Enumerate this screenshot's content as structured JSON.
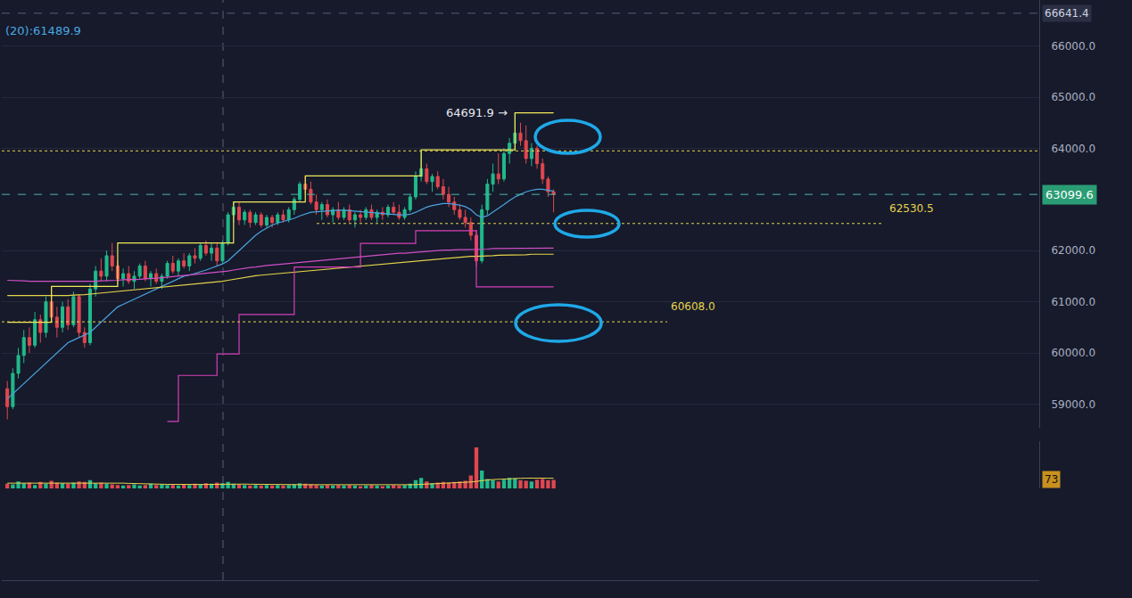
{
  "chart_data": {
    "type": "candlestick",
    "indicator_text": "(20):61489.9",
    "x": [
      0,
      1,
      2,
      3,
      4,
      5,
      6,
      7,
      8,
      9,
      10,
      11,
      12,
      13,
      14,
      15,
      16,
      17,
      18,
      19,
      20,
      21,
      22,
      23,
      24,
      25,
      26,
      27,
      28,
      29,
      30,
      31,
      32,
      33,
      34,
      35,
      36,
      37,
      38,
      39,
      40,
      41,
      42,
      43,
      44,
      45,
      46,
      47,
      48,
      49,
      50,
      51,
      52,
      53,
      54,
      55,
      56,
      57,
      58,
      59,
      60,
      61,
      62,
      63,
      64,
      65,
      66,
      67,
      68,
      69,
      70,
      71,
      72,
      73,
      74,
      75,
      76,
      77,
      78,
      79,
      80,
      81,
      82,
      83,
      84,
      85,
      86,
      87,
      88,
      89,
      90,
      91,
      92,
      93,
      94,
      95,
      96,
      97,
      98,
      99
    ],
    "open": [
      59300,
      58950,
      59600,
      59950,
      60300,
      60150,
      60650,
      60400,
      61000,
      60700,
      60500,
      60900,
      60550,
      61100,
      60400,
      60200,
      61250,
      61600,
      61500,
      61900,
      61700,
      61450,
      61550,
      61400,
      61500,
      61700,
      61450,
      61550,
      61400,
      61500,
      61750,
      61600,
      61800,
      61700,
      61900,
      61850,
      62100,
      61950,
      62050,
      61800,
      62150,
      62700,
      62850,
      62600,
      62750,
      62550,
      62700,
      62500,
      62650,
      62550,
      62700,
      62600,
      62800,
      63000,
      63300,
      63200,
      62950,
      62800,
      62900,
      62700,
      62800,
      62650,
      62800,
      62600,
      62700,
      62650,
      62800,
      62650,
      62750,
      62700,
      62850,
      62750,
      62650,
      62800,
      63050,
      63450,
      63600,
      63350,
      63450,
      63250,
      63100,
      62950,
      62800,
      62650,
      62550,
      62300,
      61800,
      62800,
      63300,
      63500,
      63400,
      63900,
      64100,
      64300,
      64150,
      63800,
      64000,
      63700,
      63400,
      63150
    ],
    "high": [
      59450,
      59700,
      60100,
      60450,
      60500,
      60800,
      60750,
      61100,
      61300,
      60900,
      61000,
      61050,
      61200,
      61150,
      60500,
      61350,
      61700,
      61850,
      62000,
      62150,
      61800,
      61650,
      61700,
      61600,
      61750,
      61800,
      61600,
      61650,
      61550,
      61800,
      61900,
      61850,
      61950,
      61950,
      62050,
      62150,
      62200,
      62150,
      62150,
      62200,
      62750,
      62950,
      62950,
      62800,
      62800,
      62750,
      62750,
      62700,
      62700,
      62750,
      62800,
      62850,
      63050,
      63350,
      63450,
      63350,
      63100,
      62950,
      63000,
      62850,
      62950,
      62850,
      62900,
      62750,
      62800,
      62850,
      62900,
      62800,
      62850,
      62900,
      62950,
      62900,
      62850,
      63100,
      63550,
      63950,
      63700,
      63500,
      63550,
      63400,
      63250,
      63050,
      62900,
      62800,
      62650,
      62400,
      62900,
      63400,
      63700,
      63900,
      64000,
      64200,
      64691.9,
      64500,
      64450,
      64100,
      64050,
      63800,
      63450,
      63200
    ],
    "low": [
      58700,
      58900,
      59500,
      59800,
      60000,
      60100,
      60200,
      60300,
      60600,
      60300,
      60400,
      60450,
      60500,
      60300,
      60100,
      60150,
      61100,
      61400,
      61400,
      61600,
      61350,
      61300,
      61350,
      61250,
      61450,
      61400,
      61300,
      61350,
      61250,
      61450,
      61550,
      61500,
      61650,
      61600,
      61750,
      61800,
      61900,
      61800,
      61700,
      61750,
      62100,
      62550,
      62500,
      62500,
      62450,
      62500,
      62450,
      62450,
      62450,
      62500,
      62550,
      62550,
      62700,
      62950,
      63100,
      62900,
      62700,
      62600,
      62650,
      62550,
      62600,
      62600,
      62550,
      62450,
      62550,
      62600,
      62600,
      62550,
      62600,
      62650,
      62700,
      62600,
      62600,
      62750,
      63000,
      63350,
      63300,
      63150,
      63200,
      63000,
      62850,
      62700,
      62600,
      62450,
      62200,
      61700,
      61750,
      62700,
      63150,
      63300,
      63350,
      63700,
      63950,
      64050,
      63700,
      63650,
      63600,
      63300,
      63050,
      62750
    ],
    "close": [
      58950,
      59600,
      59950,
      60300,
      60150,
      60650,
      60400,
      61000,
      60700,
      60500,
      60900,
      60550,
      61100,
      60400,
      60200,
      61250,
      61600,
      61500,
      61900,
      61700,
      61450,
      61550,
      61400,
      61500,
      61700,
      61450,
      61550,
      61400,
      61500,
      61750,
      61600,
      61800,
      61700,
      61900,
      61850,
      62100,
      61950,
      62050,
      61800,
      62150,
      62700,
      62850,
      62600,
      62750,
      62550,
      62700,
      62500,
      62650,
      62550,
      62700,
      62600,
      62800,
      63000,
      63300,
      63200,
      62950,
      62800,
      62900,
      62700,
      62800,
      62650,
      62800,
      62600,
      62700,
      62650,
      62800,
      62650,
      62750,
      62700,
      62850,
      62750,
      62650,
      62800,
      63050,
      63450,
      63600,
      63350,
      63450,
      63250,
      63100,
      62950,
      62800,
      62650,
      62550,
      62300,
      61800,
      62800,
      63300,
      63500,
      63400,
      63900,
      64100,
      64300,
      64150,
      63800,
      64000,
      63700,
      63400,
      63150,
      63099.6
    ],
    "colors": [
      "#22b98a",
      "#e0474f"
    ],
    "series": [
      {
        "color": "#4aa3df",
        "line_style": "solid",
        "values": [
          59100,
          59200,
          59300,
          59400,
          59500,
          59600,
          59700,
          59800,
          59900,
          60000,
          60100,
          60200,
          60250,
          60300,
          60350,
          60400,
          60500,
          60600,
          60700,
          60800,
          60900,
          60950,
          61000,
          61050,
          61100,
          61150,
          61200,
          61250,
          61300,
          61350,
          61400,
          61450,
          61500,
          61520,
          61550,
          61580,
          61620,
          61660,
          61700,
          61740,
          61800,
          61900,
          62000,
          62100,
          62200,
          62300,
          62380,
          62440,
          62500,
          62540,
          62570,
          62600,
          62630,
          62680,
          62720,
          62750,
          62760,
          62770,
          62780,
          62790,
          62790,
          62790,
          62780,
          62770,
          62760,
          62750,
          62740,
          62730,
          62720,
          62710,
          62700,
          62700,
          62700,
          62710,
          62750,
          62800,
          62850,
          62880,
          62900,
          62920,
          62920,
          62910,
          62890,
          62860,
          62800,
          62700,
          62650,
          62680,
          62750,
          62820,
          62900,
          62980,
          63050,
          63100,
          63150,
          63180,
          63200,
          63200,
          63180,
          63160
        ]
      },
      {
        "color": "#e5d34a",
        "line_style": "solid",
        "values": [
          61120,
          61120,
          61110,
          61110,
          61110,
          61110,
          61110,
          61110,
          61110,
          61110,
          61120,
          61120,
          61130,
          61130,
          61140,
          61150,
          61160,
          61170,
          61180,
          61190,
          61200,
          61210,
          61220,
          61230,
          61240,
          61250,
          61260,
          61270,
          61280,
          61290,
          61300,
          61310,
          61320,
          61330,
          61340,
          61350,
          61360,
          61370,
          61380,
          61400,
          61420,
          61440,
          61460,
          61480,
          61500,
          61510,
          61520,
          61530,
          61540,
          61550,
          61560,
          61570,
          61580,
          61590,
          61600,
          61610,
          61620,
          61630,
          61640,
          61650,
          61660,
          61670,
          61680,
          61690,
          61700,
          61710,
          61720,
          61730,
          61740,
          61750,
          61760,
          61770,
          61780,
          61790,
          61800,
          61810,
          61820,
          61830,
          61840,
          61850,
          61860,
          61870,
          61880,
          61880,
          61890,
          61890,
          61890,
          61900,
          61900,
          61910,
          61910,
          61910,
          61920,
          61920,
          61920,
          61930,
          61930,
          61930,
          61930,
          61930
        ]
      },
      {
        "color": "#d14fc6",
        "line_style": "solid",
        "values": [
          61420,
          61420,
          61410,
          61410,
          61400,
          61400,
          61400,
          61400,
          61390,
          61390,
          61390,
          61390,
          61390,
          61400,
          61400,
          61400,
          61400,
          61410,
          61410,
          61420,
          61420,
          61430,
          61430,
          61440,
          61440,
          61450,
          61450,
          61460,
          61470,
          61480,
          61490,
          61500,
          61510,
          61520,
          61530,
          61540,
          61550,
          61560,
          61570,
          61580,
          61600,
          61620,
          61640,
          61650,
          61670,
          61680,
          61700,
          61710,
          61720,
          61730,
          61740,
          61750,
          61770,
          61780,
          61790,
          61800,
          61810,
          61820,
          61830,
          61840,
          61850,
          61860,
          61870,
          61880,
          61890,
          61900,
          61910,
          61910,
          61920,
          61930,
          61940,
          61950,
          61950,
          61960,
          61970,
          61980,
          61990,
          62000,
          62000,
          62010,
          62010,
          62020,
          62020,
          62020,
          62020,
          62020,
          62030,
          62030,
          62040,
          62040,
          62040,
          62050,
          62050,
          62050,
          62050,
          62050,
          62050,
          62050,
          62050,
          62050
        ]
      },
      {
        "color": "#f2ea5a",
        "line_style": "step",
        "values": [
          60600,
          60600,
          60600,
          60600,
          60600,
          60600,
          60600,
          60600,
          61300,
          61300,
          61300,
          61300,
          61300,
          61300,
          61300,
          61300,
          61300,
          61300,
          61300,
          61300,
          62150,
          62150,
          62150,
          62150,
          62150,
          62150,
          62150,
          62150,
          62150,
          62150,
          62150,
          62150,
          62150,
          62150,
          62150,
          62150,
          62150,
          62150,
          62150,
          62150,
          62150,
          62950,
          62950,
          62950,
          62950,
          62950,
          62950,
          62950,
          62950,
          62950,
          62950,
          62950,
          62950,
          62950,
          63460,
          63460,
          63460,
          63460,
          63460,
          63460,
          63460,
          63460,
          63460,
          63460,
          63460,
          63460,
          63460,
          63460,
          63460,
          63460,
          63460,
          63460,
          63460,
          63460,
          63460,
          63970,
          63970,
          63970,
          63970,
          63970,
          63970,
          63970,
          63970,
          63970,
          63970,
          63970,
          63970,
          63970,
          63970,
          63970,
          63970,
          63970,
          64691.9,
          64691.9,
          64691.9,
          64691.9,
          64691.9,
          64691.9,
          64691.9,
          64691.9
        ]
      },
      {
        "color": "#d63fb9",
        "line_style": "step",
        "values": [
          null,
          null,
          null,
          null,
          null,
          null,
          null,
          null,
          null,
          null,
          null,
          null,
          null,
          null,
          null,
          null,
          null,
          null,
          null,
          null,
          null,
          null,
          null,
          null,
          null,
          null,
          null,
          null,
          null,
          58660,
          58660,
          59560,
          59560,
          59560,
          59560,
          59560,
          59560,
          59560,
          59980,
          59980,
          59980,
          59980,
          60750,
          60750,
          60750,
          60750,
          60750,
          60750,
          60750,
          60750,
          60750,
          60750,
          61680,
          61680,
          61680,
          61680,
          61680,
          61680,
          61680,
          61680,
          61680,
          61680,
          61680,
          61680,
          62140,
          62140,
          62140,
          62140,
          62140,
          62140,
          62140,
          62140,
          62140,
          62140,
          62390,
          62390,
          62390,
          62390,
          62390,
          62390,
          62390,
          62390,
          62390,
          62390,
          62390,
          61290,
          61290,
          61290,
          61290,
          61290,
          61290,
          61290,
          61290,
          61290,
          61290,
          61290,
          61290,
          61290,
          61290,
          61290
        ]
      }
    ],
    "volume": {
      "values": [
        40,
        35,
        60,
        45,
        50,
        30,
        55,
        40,
        65,
        50,
        45,
        40,
        50,
        60,
        55,
        70,
        45,
        50,
        40,
        35,
        30,
        25,
        30,
        35,
        25,
        30,
        40,
        30,
        35,
        30,
        30,
        25,
        35,
        30,
        40,
        35,
        45,
        40,
        50,
        45,
        55,
        40,
        35,
        30,
        25,
        30,
        25,
        30,
        25,
        30,
        25,
        30,
        35,
        45,
        40,
        35,
        30,
        25,
        30,
        25,
        30,
        25,
        30,
        25,
        20,
        25,
        30,
        25,
        20,
        25,
        30,
        25,
        30,
        40,
        70,
        90,
        60,
        45,
        50,
        55,
        50,
        55,
        60,
        65,
        110,
        345,
        150,
        80,
        70,
        60,
        75,
        90,
        85,
        70,
        65,
        60,
        75,
        80,
        70,
        73
      ],
      "ma": {
        "color": "#e8d44d",
        "values": [
          45,
          45,
          45,
          46,
          46,
          46,
          47,
          47,
          47,
          48,
          48,
          48,
          49,
          49,
          49,
          50,
          50,
          50,
          49,
          48,
          47,
          45,
          43,
          41,
          40,
          39,
          38,
          37,
          36,
          35,
          34,
          33,
          33,
          33,
          33,
          34,
          34,
          35,
          36,
          37,
          38,
          38,
          38,
          37,
          36,
          35,
          34,
          33,
          32,
          32,
          31,
          31,
          31,
          32,
          32,
          32,
          32,
          31,
          31,
          30,
          30,
          29,
          29,
          28,
          28,
          28,
          27,
          27,
          27,
          27,
          27,
          27,
          28,
          29,
          32,
          35,
          37,
          38,
          40,
          42,
          44,
          46,
          48,
          50,
          55,
          60,
          68,
          72,
          75,
          78,
          80,
          83,
          85,
          86,
          87,
          88,
          88,
          88,
          87,
          86
        ]
      },
      "ylim": [
        0,
        400
      ],
      "color": "#c8901e"
    },
    "levels": [
      {
        "value": 63950,
        "color": "#e8d44d",
        "line_style": "dot"
      },
      {
        "value": 62530.5,
        "label": "62530.5",
        "color": "#e8d44d",
        "line_style": "dot"
      },
      {
        "value": 60608.0,
        "label": "60608.0",
        "color": "#e8d44d",
        "line_style": "dot"
      }
    ],
    "last_price": {
      "color": "#2a9d74",
      "line_style": "dash"
    },
    "crosshair_price": 66641.4,
    "annotations": [
      {
        "x": 92,
        "y": 64691.9,
        "text": "64691.9 →"
      }
    ],
    "xlim": [
      -1,
      187
    ],
    "ylim": [
      58540,
      66900
    ],
    "yticks": [
      {
        "value": 59000,
        "label": "59000.0"
      },
      {
        "value": 60000,
        "label": "60000.0"
      },
      {
        "value": 61000,
        "label": "61000.0"
      },
      {
        "value": 62000,
        "label": "62000.0"
      },
      {
        "value": 64000,
        "label": "64000.0"
      },
      {
        "value": 65000,
        "label": "65000.0"
      },
      {
        "value": 66000,
        "label": "66000.0"
      }
    ],
    "grid": true,
    "tick_labels": "y"
  }
}
